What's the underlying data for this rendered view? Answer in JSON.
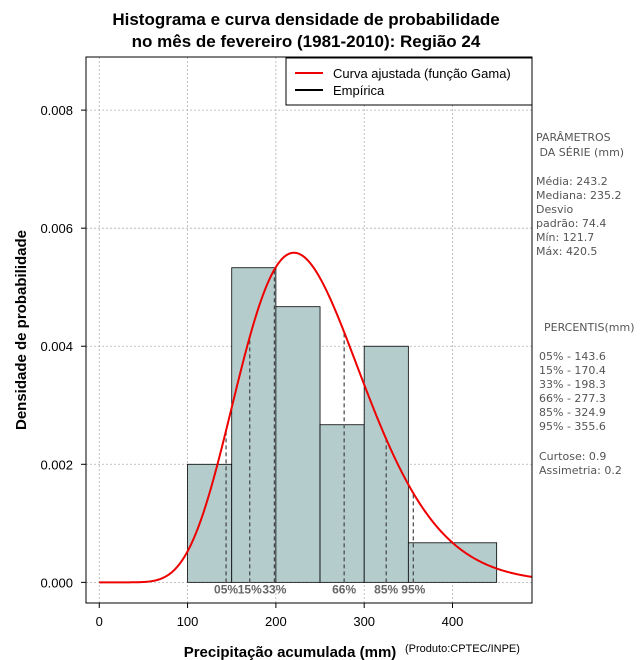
{
  "chart_data": {
    "type": "bar",
    "title_lines": [
      "Histograma e curva densidade de probabilidade",
      "no mês de fevereiro (1981-2010): Região 24"
    ],
    "xlabel": "Precipitação acumulada (mm)",
    "ylabel": "Densidade de probabilidade",
    "credit": "(Produto:CPTEC/INPE)",
    "xlim": [
      -15,
      490
    ],
    "ylim": [
      -0.00035,
      0.0089
    ],
    "x_ticks": [
      0,
      100,
      200,
      300,
      400
    ],
    "y_ticks": [
      0.0,
      0.002,
      0.004,
      0.006,
      0.008
    ],
    "y_tick_labels": [
      "0.000",
      "0.002",
      "0.004",
      "0.006",
      "0.008"
    ],
    "grid": true,
    "histogram": {
      "bins": [
        {
          "start": 100,
          "end": 150,
          "density": 0.002
        },
        {
          "start": 150,
          "end": 200,
          "density": 0.00533
        },
        {
          "start": 200,
          "end": 250,
          "density": 0.00467
        },
        {
          "start": 250,
          "end": 300,
          "density": 0.00267
        },
        {
          "start": 300,
          "end": 350,
          "density": 0.004
        },
        {
          "start": 350,
          "end": 450,
          "density": 0.00067
        }
      ]
    },
    "gamma_curve": {
      "mean": 243.2,
      "sd": 74.4,
      "x_range": [
        0,
        490
      ]
    },
    "percentile_lines": [
      {
        "label": "05%",
        "value": 143.6
      },
      {
        "label": "15%",
        "value": 170.4
      },
      {
        "label": "33%",
        "value": 198.3
      },
      {
        "label": "66%",
        "value": 277.3
      },
      {
        "label": "85%",
        "value": 324.9
      },
      {
        "label": "95%",
        "value": 355.6
      }
    ],
    "legend": [
      {
        "label": "Curva ajustada (função Gama)",
        "color": "#ee0000"
      },
      {
        "label": "Empírica",
        "color": "#000000"
      }
    ],
    "side_panel": {
      "params_title": [
        "PARÂMETROS",
        " DA SÉRIE (mm)"
      ],
      "params": [
        "Média:  243.2",
        "Mediana:  235.2",
        "Desvio",
        "padrão:  74.4",
        "Mín:  121.7",
        "Máx:  420.5"
      ],
      "percentis_title": "PERCENTIS(mm)",
      "percentis": [
        "05% -  143.6",
        "15% -  170.4",
        "33% -  198.3",
        "66% -  277.3",
        "85% -  324.9",
        "95% -  355.6"
      ],
      "stats": [
        "Curtose:  0.9",
        "Assimetria:  0.2"
      ]
    },
    "colors": {
      "bar_fill": "#b4cccc",
      "curve": "#ee0000",
      "grid": "#b0b0b0",
      "pct_line": "#444444"
    }
  }
}
